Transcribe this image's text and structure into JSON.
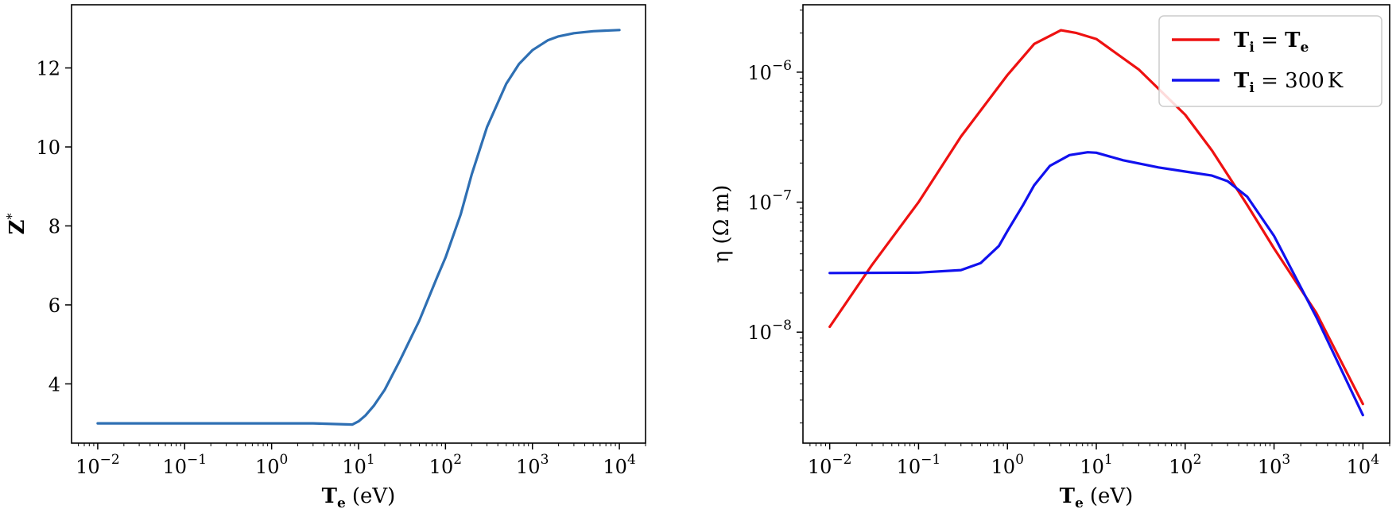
{
  "chart_data": [
    {
      "type": "line",
      "xlabel": {
        "main": "T",
        "sub": "e",
        "unit": "(eV)"
      },
      "ylabel": {
        "main": "Z",
        "sup": "*"
      },
      "x_scale": "log",
      "y_scale": "linear",
      "xlim": [
        0.005,
        20000
      ],
      "ylim": [
        2.5,
        13.6
      ],
      "x_ticks": [
        {
          "value": 0.01,
          "base": "10",
          "exp": "−2"
        },
        {
          "value": 0.1,
          "base": "10",
          "exp": "−1"
        },
        {
          "value": 1,
          "base": "10",
          "exp": "0"
        },
        {
          "value": 10,
          "base": "10",
          "exp": "1"
        },
        {
          "value": 100,
          "base": "10",
          "exp": "2"
        },
        {
          "value": 1000,
          "base": "10",
          "exp": "3"
        },
        {
          "value": 10000,
          "base": "10",
          "exp": "4"
        }
      ],
      "y_ticks": [
        {
          "value": 4,
          "label": "4"
        },
        {
          "value": 6,
          "label": "6"
        },
        {
          "value": 8,
          "label": "8"
        },
        {
          "value": 10,
          "label": "10"
        },
        {
          "value": 12,
          "label": "12"
        }
      ],
      "grid": false,
      "series": [
        {
          "color": "#2e6fb3",
          "x": [
            0.01,
            0.1,
            1,
            3,
            6,
            8.5,
            10,
            12,
            15,
            20,
            30,
            50,
            80,
            100,
            150,
            200,
            300,
            500,
            700,
            1000,
            1500,
            2000,
            3000,
            5000,
            10000
          ],
          "y": [
            3.0,
            3.0,
            3.0,
            3.0,
            2.98,
            2.97,
            3.05,
            3.2,
            3.45,
            3.85,
            4.6,
            5.6,
            6.7,
            7.2,
            8.3,
            9.3,
            10.5,
            11.6,
            12.1,
            12.45,
            12.7,
            12.8,
            12.88,
            12.93,
            12.96
          ]
        }
      ]
    },
    {
      "type": "line",
      "xlabel": {
        "main": "T",
        "sub": "e",
        "unit": "(eV)"
      },
      "ylabel": {
        "text": "η (Ω m)"
      },
      "x_scale": "log",
      "y_scale": "log",
      "xlim": [
        0.005,
        20000
      ],
      "ylim": [
        1.4e-09,
        3.3e-06
      ],
      "x_ticks": [
        {
          "value": 0.01,
          "base": "10",
          "exp": "−2"
        },
        {
          "value": 0.1,
          "base": "10",
          "exp": "−1"
        },
        {
          "value": 1,
          "base": "10",
          "exp": "0"
        },
        {
          "value": 10,
          "base": "10",
          "exp": "1"
        },
        {
          "value": 100,
          "base": "10",
          "exp": "2"
        },
        {
          "value": 1000,
          "base": "10",
          "exp": "3"
        },
        {
          "value": 10000,
          "base": "10",
          "exp": "4"
        }
      ],
      "y_ticks": [
        {
          "value": 1e-08,
          "base": "10",
          "exp": "−8"
        },
        {
          "value": 1e-07,
          "base": "10",
          "exp": "−7"
        },
        {
          "value": 1e-06,
          "base": "10",
          "exp": "−6"
        }
      ],
      "grid": false,
      "legend_position": "top-right",
      "series": [
        {
          "name": "T_i = T_e",
          "legend": {
            "lhs_main": "T",
            "lhs_sub": "i",
            "rhs_main": "T",
            "rhs_sub": "e",
            "rhs_unit": ""
          },
          "color": "#ee1111",
          "x": [
            0.01,
            0.03,
            0.1,
            0.3,
            1,
            2,
            4,
            6,
            10,
            30,
            100,
            200,
            500,
            1000,
            3000,
            10000
          ],
          "y": [
            1.1e-08,
            3.3e-08,
            1e-07,
            3.2e-07,
            9.5e-07,
            1.65e-06,
            2.1e-06,
            2e-06,
            1.8e-06,
            1.05e-06,
            4.7e-07,
            2.5e-07,
            9.5e-08,
            4.4e-08,
            1.4e-08,
            2.8e-09
          ]
        },
        {
          "name": "T_i = 300 K",
          "legend": {
            "lhs_main": "T",
            "lhs_sub": "i",
            "rhs_main": "300",
            "rhs_sub": "",
            "rhs_unit": "K"
          },
          "color": "#1111ee",
          "x": [
            0.01,
            0.1,
            0.3,
            0.5,
            0.8,
            1,
            1.5,
            2,
            3,
            5,
            8,
            10,
            20,
            50,
            100,
            200,
            300,
            500,
            1000,
            3000,
            10000
          ],
          "y": [
            2.85e-08,
            2.87e-08,
            3e-08,
            3.4e-08,
            4.6e-08,
            6e-08,
            9.5e-08,
            1.35e-07,
            1.9e-07,
            2.3e-07,
            2.42e-07,
            2.4e-07,
            2.1e-07,
            1.85e-07,
            1.72e-07,
            1.6e-07,
            1.45e-07,
            1.1e-07,
            5.5e-08,
            1.3e-08,
            2.3e-09
          ]
        }
      ]
    }
  ]
}
